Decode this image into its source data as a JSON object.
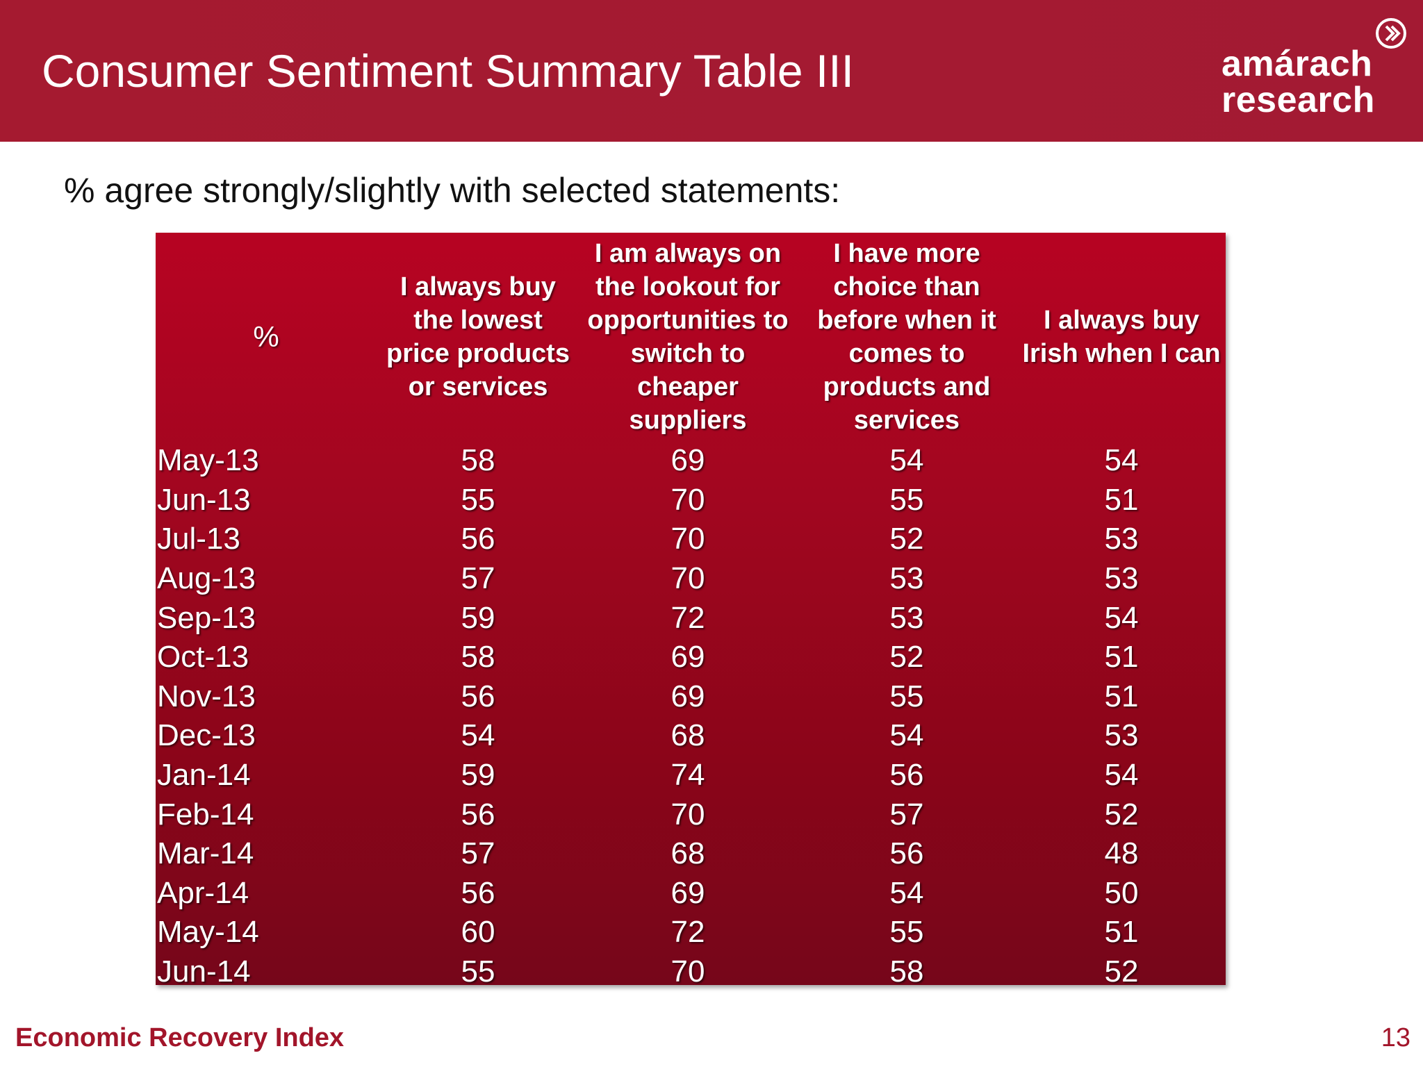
{
  "header": {
    "title": "Consumer Sentiment Summary Table III",
    "logo_line1": "amárach",
    "logo_line2": "research",
    "logo_icon": "chevron-circle-icon"
  },
  "subtitle": "% agree strongly/slightly with selected statements:",
  "table": {
    "corner": "%",
    "columns": [
      "I always buy the lowest price products or services",
      "I am always on the lookout for opportunities to switch to cheaper suppliers",
      "I have more choice than before when it comes to products and services",
      "I always buy Irish when I can"
    ],
    "rows": [
      {
        "month": "May-13",
        "values": [
          "58",
          "69",
          "54",
          "54"
        ]
      },
      {
        "month": "Jun-13",
        "values": [
          "55",
          "70",
          "55",
          "51"
        ]
      },
      {
        "month": "Jul-13",
        "values": [
          "56",
          "70",
          "52",
          "53"
        ]
      },
      {
        "month": "Aug-13",
        "values": [
          "57",
          "70",
          "53",
          "53"
        ]
      },
      {
        "month": "Sep-13",
        "values": [
          "59",
          "72",
          "53",
          "54"
        ]
      },
      {
        "month": "Oct-13",
        "values": [
          "58",
          "69",
          "52",
          "51"
        ]
      },
      {
        "month": "Nov-13",
        "values": [
          "56",
          "69",
          "55",
          "51"
        ]
      },
      {
        "month": "Dec-13",
        "values": [
          "54",
          "68",
          "54",
          "53"
        ]
      },
      {
        "month": "Jan-14",
        "values": [
          "59",
          "74",
          "56",
          "54"
        ]
      },
      {
        "month": "Feb-14",
        "values": [
          "56",
          "70",
          "57",
          "52"
        ]
      },
      {
        "month": "Mar-14",
        "values": [
          "57",
          "68",
          "56",
          "48"
        ]
      },
      {
        "month": "Apr-14",
        "values": [
          "56",
          "69",
          "54",
          "50"
        ]
      },
      {
        "month": "May-14",
        "values": [
          "60",
          "72",
          "55",
          "51"
        ]
      },
      {
        "month": "Jun-14",
        "values": [
          "55",
          "70",
          "58",
          "52"
        ]
      }
    ]
  },
  "footer": {
    "left": "Economic Recovery Index",
    "page_number": "13"
  },
  "colors": {
    "brand_red": "#a51a30",
    "table_top": "#b70322",
    "table_bottom": "#76061a"
  }
}
